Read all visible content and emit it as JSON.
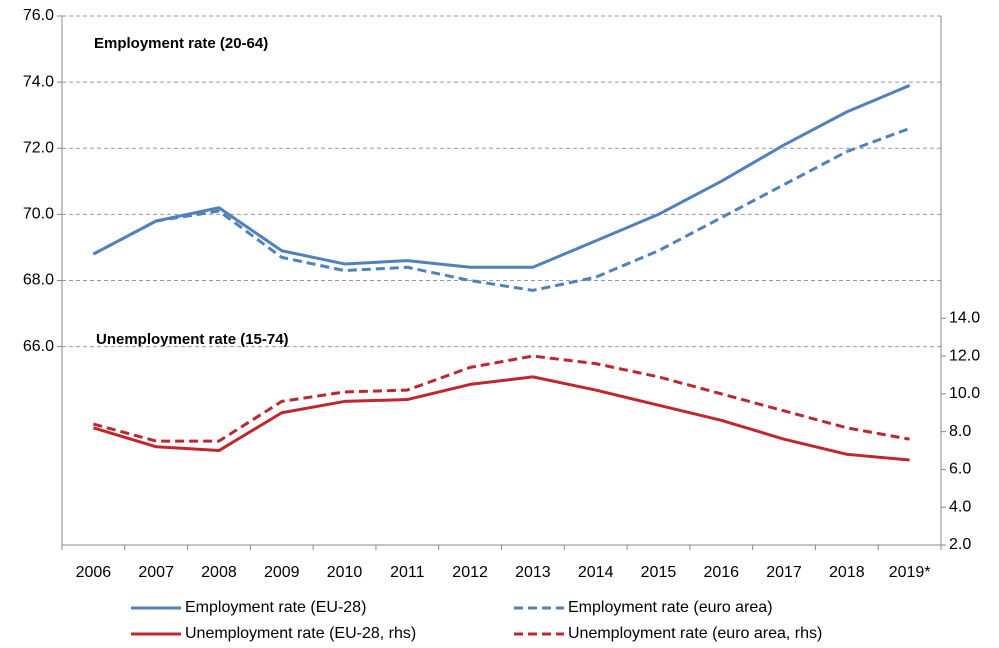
{
  "chart_data": {
    "type": "line",
    "annotations": [
      "Employment rate (20-64)",
      "Unemployment rate (15-74)"
    ],
    "categories": [
      "2006",
      "2007",
      "2008",
      "2009",
      "2010",
      "2011",
      "2012",
      "2013",
      "2014",
      "2015",
      "2016",
      "2017",
      "2018",
      "2019*"
    ],
    "series": [
      {
        "name": "Employment rate (EU-28)",
        "color": "#4f81bd",
        "dash": false,
        "values": [
          68.8,
          69.8,
          70.2,
          68.9,
          68.5,
          68.6,
          68.4,
          68.4,
          69.2,
          70.0,
          71.0,
          72.1,
          73.1,
          73.9
        ]
      },
      {
        "name": "Employment rate (euro area)",
        "color": "#4f81bd",
        "dash": true,
        "values": [
          68.8,
          69.8,
          70.1,
          68.7,
          68.3,
          68.4,
          68.0,
          67.7,
          68.1,
          68.9,
          69.9,
          70.9,
          71.9,
          72.6
        ]
      },
      {
        "name": "Unemployment rate (EU-28, rhs)",
        "color": "#c0272d",
        "dash": false,
        "axis": "y2",
        "values": [
          8.2,
          7.2,
          7.0,
          9.0,
          9.6,
          9.7,
          10.5,
          10.9,
          10.2,
          9.4,
          8.6,
          7.6,
          6.8,
          6.5
        ]
      },
      {
        "name": "Unemployment rate (euro area, rhs)",
        "color": "#c0272d",
        "dash": true,
        "axis": "y2",
        "values": [
          8.4,
          7.5,
          7.5,
          9.6,
          10.1,
          10.2,
          11.4,
          12.0,
          11.6,
          10.9,
          10.0,
          9.1,
          8.2,
          7.6
        ]
      }
    ],
    "ylim": [
      60,
      76
    ],
    "yticks": [
      {
        "value": 66,
        "label": "66.0"
      },
      {
        "value": 68,
        "label": "68.0"
      },
      {
        "value": 70,
        "label": "70.0"
      },
      {
        "value": 72,
        "label": "72.0"
      },
      {
        "value": 74,
        "label": "74.0"
      },
      {
        "value": 76,
        "label": "76.0"
      }
    ],
    "y2lim": [
      2,
      30
    ],
    "y2ticks": [
      {
        "value": 2,
        "label": "2.0"
      },
      {
        "value": 4,
        "label": "4.0"
      },
      {
        "value": 6,
        "label": "6.0"
      },
      {
        "value": 8,
        "label": "8.0"
      },
      {
        "value": 10,
        "label": "10.0"
      },
      {
        "value": 12,
        "label": "12.0"
      },
      {
        "value": 14,
        "label": "14.0"
      }
    ],
    "grid": true
  }
}
